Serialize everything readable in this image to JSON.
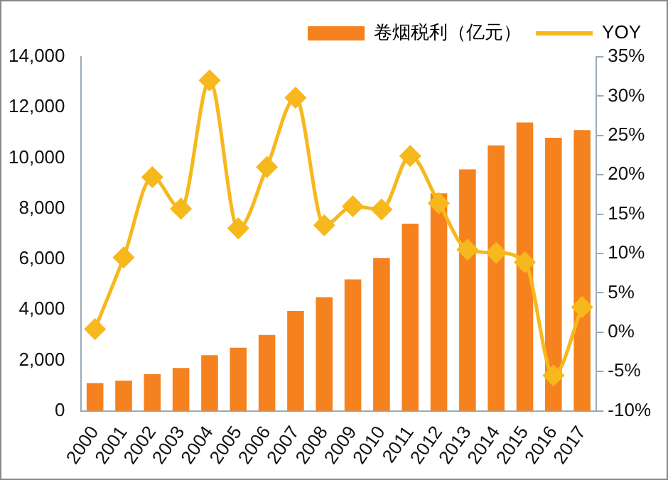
{
  "chart_data": {
    "type": "bar",
    "categories": [
      "2000",
      "2001",
      "2002",
      "2003",
      "2004",
      "2005",
      "2006",
      "2007",
      "2008",
      "2009",
      "2010",
      "2011",
      "2012",
      "2013",
      "2014",
      "2015",
      "2016",
      "2017"
    ],
    "series": [
      {
        "name": "卷烟税利（亿元）",
        "color": "#f5821f",
        "values": [
          1100,
          1200,
          1450,
          1700,
          2200,
          2500,
          3000,
          3950,
          4500,
          5200,
          6050,
          7400,
          8600,
          9550,
          10500,
          11400,
          10800,
          11100
        ]
      },
      {
        "name": "YOY",
        "type": "line",
        "axis": "y2",
        "color": "#f6b81c",
        "marker": "diamond",
        "values": [
          0.4,
          9.5,
          19.7,
          15.7,
          32,
          13.2,
          21,
          29.8,
          13.6,
          16,
          15.6,
          22.4,
          16.4,
          10.5,
          10.1,
          8.9,
          -5.5,
          3.2
        ]
      }
    ],
    "ylim": [
      0,
      14000
    ],
    "yticks": [
      {
        "value": 0,
        "label": "0"
      },
      {
        "value": 2000,
        "label": "2,000"
      },
      {
        "value": 4000,
        "label": "4,000"
      },
      {
        "value": 6000,
        "label": "6,000"
      },
      {
        "value": 8000,
        "label": "8,000"
      },
      {
        "value": 10000,
        "label": "10,000"
      },
      {
        "value": 12000,
        "label": "12,000"
      },
      {
        "value": 14000,
        "label": "14,000"
      }
    ],
    "y2lim": [
      -10,
      35
    ],
    "y2ticks": [
      {
        "value": -10,
        "label": "-10%"
      },
      {
        "value": -5,
        "label": "-5%"
      },
      {
        "value": 0,
        "label": "0%"
      },
      {
        "value": 5,
        "label": "5%"
      },
      {
        "value": 10,
        "label": "10%"
      },
      {
        "value": 15,
        "label": "15%"
      },
      {
        "value": 20,
        "label": "20%"
      },
      {
        "value": 25,
        "label": "25%"
      },
      {
        "value": 30,
        "label": "30%"
      },
      {
        "value": 35,
        "label": "35%"
      }
    ],
    "legend": "top right",
    "grid": false
  }
}
